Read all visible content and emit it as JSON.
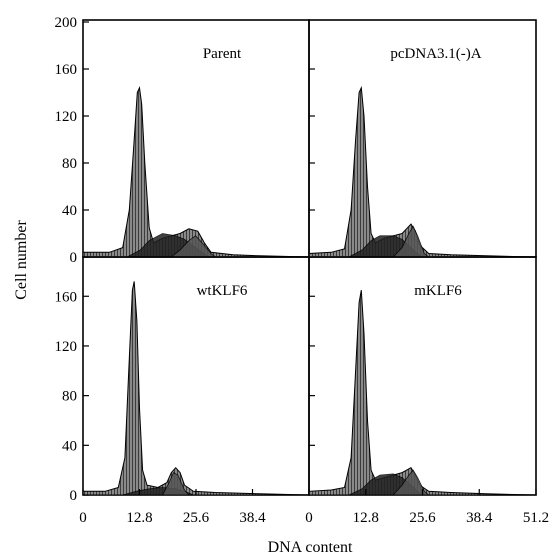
{
  "figure": {
    "xlabel": "DNA content",
    "ylabel": "Cell number"
  },
  "chart_data": [
    {
      "type": "area",
      "title": "Parent",
      "xlabel": "",
      "ylabel": "",
      "xlim": [
        0,
        51.2
      ],
      "ylim": [
        0,
        200
      ],
      "xticks": [],
      "yticks": [
        0,
        40,
        80,
        120,
        160,
        200
      ],
      "grid": false,
      "series": [
        {
          "values": [
            [
              0,
              4
            ],
            [
              6,
              4
            ],
            [
              9,
              8
            ],
            [
              10.5,
              40
            ],
            [
              11.5,
              95
            ],
            [
              12.3,
              140
            ],
            [
              12.8,
              144
            ],
            [
              13.3,
              130
            ],
            [
              14,
              80
            ],
            [
              15,
              25
            ],
            [
              16,
              12
            ],
            [
              18,
              16
            ],
            [
              20,
              18
            ],
            [
              22,
              20
            ],
            [
              24,
              24
            ],
            [
              26,
              22
            ],
            [
              27.5,
              12
            ],
            [
              29,
              4
            ],
            [
              34,
              2
            ],
            [
              40,
              1
            ],
            [
              51.2,
              0
            ]
          ]
        },
        {
          "values": [
            [
              10,
              0
            ],
            [
              13,
              6
            ],
            [
              15,
              14
            ],
            [
              18,
              20
            ],
            [
              21,
              18
            ],
            [
              23,
              15
            ],
            [
              25.5,
              8
            ],
            [
              28,
              1
            ],
            [
              29,
              0
            ]
          ]
        },
        {
          "values": [
            [
              20,
              0
            ],
            [
              22,
              6
            ],
            [
              24,
              14
            ],
            [
              25.5,
              18
            ],
            [
              27,
              12
            ],
            [
              29,
              3
            ],
            [
              30,
              0
            ]
          ]
        }
      ]
    },
    {
      "type": "area",
      "title": "pcDNA3.1(-)A",
      "xlabel": "",
      "ylabel": "",
      "xlim": [
        0,
        51.2
      ],
      "ylim": [
        0,
        200
      ],
      "xticks": [],
      "yticks": [],
      "grid": false,
      "series": [
        {
          "values": [
            [
              0,
              3
            ],
            [
              5,
              4
            ],
            [
              8,
              7
            ],
            [
              9.5,
              40
            ],
            [
              10.5,
              100
            ],
            [
              11.3,
              140
            ],
            [
              11.8,
              144
            ],
            [
              12.4,
              120
            ],
            [
              13.2,
              60
            ],
            [
              14,
              20
            ],
            [
              15,
              12
            ],
            [
              17,
              16
            ],
            [
              19,
              18
            ],
            [
              21,
              20
            ],
            [
              22,
              24
            ],
            [
              23,
              28
            ],
            [
              24,
              22
            ],
            [
              25,
              10
            ],
            [
              27,
              3
            ],
            [
              32,
              2
            ],
            [
              40,
              1
            ],
            [
              51.2,
              0
            ]
          ]
        },
        {
          "values": [
            [
              9,
              0
            ],
            [
              12,
              6
            ],
            [
              14,
              14
            ],
            [
              16,
              18
            ],
            [
              19,
              18
            ],
            [
              21,
              15
            ],
            [
              23,
              8
            ],
            [
              25,
              1
            ],
            [
              26,
              0
            ]
          ]
        },
        {
          "values": [
            [
              19,
              0
            ],
            [
              21,
              8
            ],
            [
              22.5,
              20
            ],
            [
              23.5,
              26
            ],
            [
              24.5,
              18
            ],
            [
              26,
              3
            ],
            [
              27,
              0
            ]
          ]
        }
      ]
    },
    {
      "type": "area",
      "title": "wtKLF6",
      "xlabel": "",
      "ylabel": "",
      "xlim": [
        0,
        51.2
      ],
      "ylim": [
        0,
        190
      ],
      "xticks": [
        0,
        12.8,
        25.6,
        38.4
      ],
      "yticks": [
        0,
        40,
        80,
        120,
        160
      ],
      "grid": false,
      "series": [
        {
          "values": [
            [
              0,
              3
            ],
            [
              5,
              3
            ],
            [
              8,
              6
            ],
            [
              9.5,
              30
            ],
            [
              10.5,
              110
            ],
            [
              11.2,
              165
            ],
            [
              11.6,
              172
            ],
            [
              12.2,
              140
            ],
            [
              12.8,
              70
            ],
            [
              13.5,
              20
            ],
            [
              14.5,
              8
            ],
            [
              17,
              6
            ],
            [
              19,
              10
            ],
            [
              20,
              18
            ],
            [
              21,
              22
            ],
            [
              22,
              18
            ],
            [
              23,
              8
            ],
            [
              25,
              3
            ],
            [
              30,
              2
            ],
            [
              40,
              1
            ],
            [
              51.2,
              0
            ]
          ]
        },
        {
          "values": [
            [
              9,
              0
            ],
            [
              12,
              3
            ],
            [
              15,
              5
            ],
            [
              18,
              6
            ],
            [
              21,
              5
            ],
            [
              23,
              3
            ],
            [
              25,
              0
            ]
          ]
        },
        {
          "values": [
            [
              18,
              0
            ],
            [
              19.5,
              10
            ],
            [
              20.5,
              18
            ],
            [
              21.5,
              16
            ],
            [
              23,
              4
            ],
            [
              24,
              0
            ]
          ]
        }
      ]
    },
    {
      "type": "area",
      "title": "mKLF6",
      "xlabel": "",
      "ylabel": "",
      "xlim": [
        0,
        51.2
      ],
      "ylim": [
        0,
        190
      ],
      "xticks": [
        0,
        12.8,
        25.6,
        38.4,
        51.2
      ],
      "yticks": [],
      "grid": false,
      "series": [
        {
          "values": [
            [
              0,
              3
            ],
            [
              5,
              4
            ],
            [
              8,
              6
            ],
            [
              9.5,
              30
            ],
            [
              10.5,
              100
            ],
            [
              11.3,
              155
            ],
            [
              11.8,
              165
            ],
            [
              12.4,
              130
            ],
            [
              13.2,
              60
            ],
            [
              14,
              20
            ],
            [
              15,
              12
            ],
            [
              17,
              14
            ],
            [
              19,
              16
            ],
            [
              21,
              18
            ],
            [
              22,
              20
            ],
            [
              23,
              22
            ],
            [
              24,
              16
            ],
            [
              25,
              8
            ],
            [
              27,
              3
            ],
            [
              32,
              2
            ],
            [
              40,
              1
            ],
            [
              51.2,
              0
            ]
          ]
        },
        {
          "values": [
            [
              9,
              0
            ],
            [
              12,
              5
            ],
            [
              14,
              12
            ],
            [
              16,
              16
            ],
            [
              19,
              17
            ],
            [
              21,
              14
            ],
            [
              23,
              8
            ],
            [
              25,
              1
            ],
            [
              26,
              0
            ]
          ]
        },
        {
          "values": [
            [
              19,
              0
            ],
            [
              21,
              8
            ],
            [
              22.5,
              16
            ],
            [
              23.5,
              20
            ],
            [
              24.5,
              14
            ],
            [
              26,
              3
            ],
            [
              27,
              0
            ]
          ]
        }
      ]
    }
  ]
}
